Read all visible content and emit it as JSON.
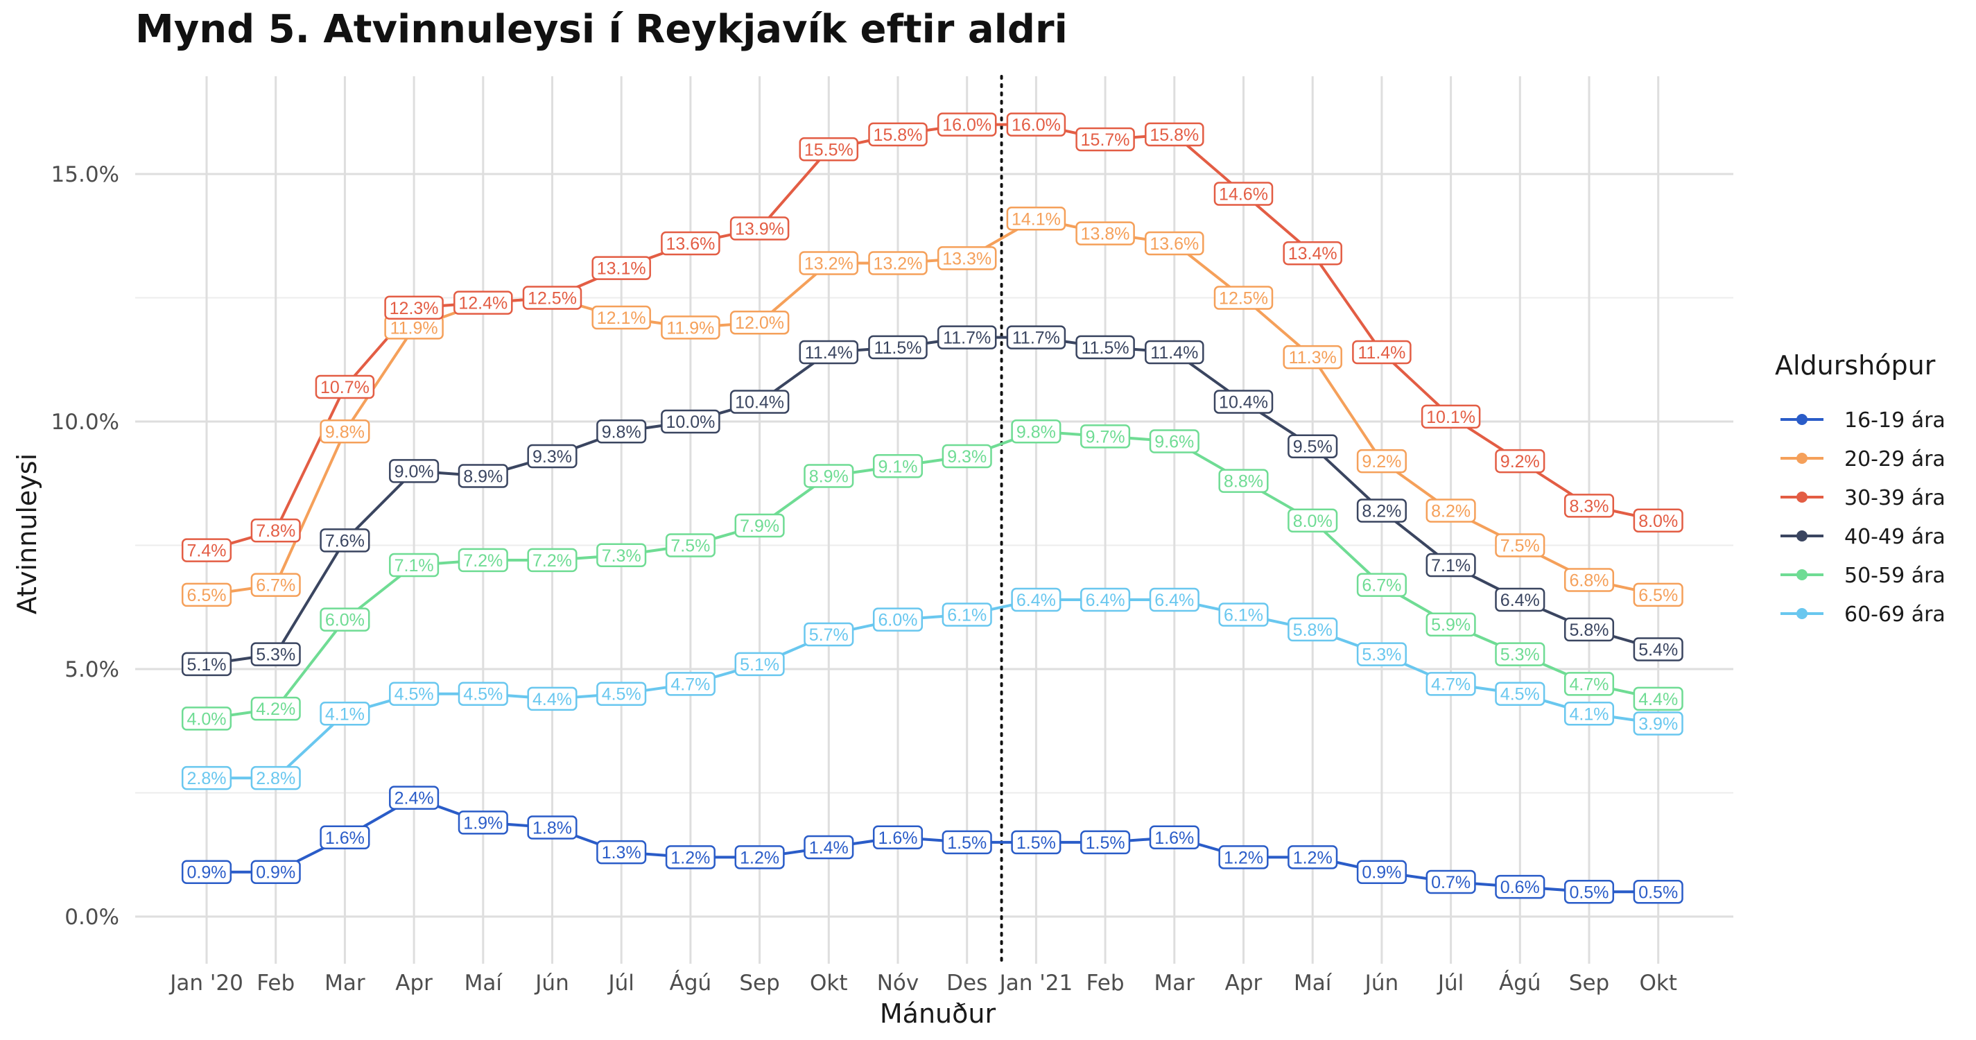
{
  "chart_data": {
    "type": "line",
    "title": "Mynd 5. Atvinnuleysi í Reykjavík eftir aldri",
    "xlabel": "Mánuður",
    "ylabel": "Atvinnuleysi",
    "categories": [
      "Jan '20",
      "Feb",
      "Mar",
      "Apr",
      "Maí",
      "Jún",
      "Júl",
      "Ágú",
      "Sep",
      "Okt",
      "Nóv",
      "Des",
      "Jan '21",
      "Feb",
      "Mar",
      "Apr",
      "Maí",
      "Jún",
      "Júl",
      "Ágú",
      "Sep",
      "Okt"
    ],
    "ylim": [
      -0.3,
      16.8
    ],
    "yticks": [
      0,
      5,
      10,
      15
    ],
    "ytick_labels": [
      "0.0%",
      "5.0%",
      "10.0%",
      "15.0%"
    ],
    "vline_between": [
      11,
      12
    ],
    "grid": true,
    "legend": {
      "title": "Aldurshópur",
      "position": "right"
    },
    "series": [
      {
        "name": "16-19 ára",
        "color": "#2a5cc8",
        "values": [
          0.9,
          0.9,
          1.6,
          2.4,
          1.9,
          1.8,
          1.3,
          1.2,
          1.2,
          1.4,
          1.6,
          1.5,
          1.5,
          1.5,
          1.6,
          1.2,
          1.2,
          0.9,
          0.7,
          0.6,
          0.5,
          0.5
        ],
        "labels": [
          "0.9%",
          "0.9%",
          "1.6%",
          "2.4%",
          "1.9%",
          "1.8%",
          "1.3%",
          "1.2%",
          "1.2%",
          "1.4%",
          "1.6%",
          "1.5%",
          "1.5%",
          "1.5%",
          "1.6%",
          "1.2%",
          "1.2%",
          "0.9%",
          "0.7%",
          "0.6%",
          "0.5%",
          "0.5%"
        ]
      },
      {
        "name": "20-29 ára",
        "color": "#f5a05a",
        "values": [
          6.5,
          6.7,
          9.8,
          11.9,
          12.4,
          12.5,
          12.1,
          11.9,
          12.0,
          13.2,
          13.2,
          13.3,
          14.1,
          13.8,
          13.6,
          12.5,
          11.3,
          9.2,
          8.2,
          7.5,
          6.8,
          6.5
        ],
        "labels": [
          "6.5%",
          "6.7%",
          "9.8%",
          "11.9%",
          "",
          "",
          "12.1%",
          "11.9%",
          "12.0%",
          "13.2%",
          "13.2%",
          "13.3%",
          "14.1%",
          "13.8%",
          "13.6%",
          "12.5%",
          "11.3%",
          "9.2%",
          "8.2%",
          "7.5%",
          "6.8%",
          "6.5%"
        ]
      },
      {
        "name": "30-39 ára",
        "color": "#e35d44",
        "values": [
          7.4,
          7.8,
          10.7,
          12.3,
          12.4,
          12.5,
          13.1,
          13.6,
          13.9,
          15.5,
          15.8,
          16.0,
          16.0,
          15.7,
          15.8,
          14.6,
          13.4,
          11.4,
          10.1,
          9.2,
          8.3,
          8.0
        ],
        "labels": [
          "7.4%",
          "7.8%",
          "10.7%",
          "12.3%",
          "12.4%",
          "12.5%",
          "13.1%",
          "13.6%",
          "13.9%",
          "15.5%",
          "15.8%",
          "16.0%",
          "16.0%",
          "15.7%",
          "15.8%",
          "14.6%",
          "13.4%",
          "11.4%",
          "10.1%",
          "9.2%",
          "8.3%",
          "8.0%"
        ]
      },
      {
        "name": "40-49 ára",
        "color": "#3a4560",
        "values": [
          5.1,
          5.3,
          7.6,
          9.0,
          8.9,
          9.3,
          9.8,
          10.0,
          10.4,
          11.4,
          11.5,
          11.7,
          11.7,
          11.5,
          11.4,
          10.4,
          9.5,
          8.2,
          7.1,
          6.4,
          5.8,
          5.4
        ],
        "labels": [
          "5.1%",
          "5.3%",
          "7.6%",
          "9.0%",
          "8.9%",
          "9.3%",
          "9.8%",
          "10.0%",
          "10.4%",
          "11.4%",
          "11.5%",
          "11.7%",
          "11.7%",
          "11.5%",
          "11.4%",
          "10.4%",
          "9.5%",
          "8.2%",
          "7.1%",
          "6.4%",
          "5.8%",
          "5.4%"
        ]
      },
      {
        "name": "50-59 ára",
        "color": "#6fdc94",
        "values": [
          4.0,
          4.2,
          6.0,
          7.1,
          7.2,
          7.2,
          7.3,
          7.5,
          7.9,
          8.9,
          9.1,
          9.3,
          9.8,
          9.7,
          9.6,
          8.8,
          8.0,
          6.7,
          5.9,
          5.3,
          4.7,
          4.4
        ],
        "labels": [
          "4.0%",
          "4.2%",
          "6.0%",
          "7.1%",
          "7.2%",
          "7.2%",
          "7.3%",
          "7.5%",
          "7.9%",
          "8.9%",
          "9.1%",
          "9.3%",
          "9.8%",
          "9.7%",
          "9.6%",
          "8.8%",
          "8.0%",
          "6.7%",
          "5.9%",
          "5.3%",
          "4.7%",
          "4.4%"
        ]
      },
      {
        "name": "60-69 ára",
        "color": "#69c7ef",
        "values": [
          2.8,
          2.8,
          4.1,
          4.5,
          4.5,
          4.4,
          4.5,
          4.7,
          5.1,
          5.7,
          6.0,
          6.1,
          6.4,
          6.4,
          6.4,
          6.1,
          5.8,
          5.3,
          4.7,
          4.5,
          4.1,
          3.9
        ],
        "labels": [
          "2.8%",
          "2.8%",
          "4.1%",
          "4.5%",
          "4.5%",
          "4.4%",
          "4.5%",
          "4.7%",
          "5.1%",
          "5.7%",
          "6.0%",
          "6.1%",
          "6.4%",
          "6.4%",
          "6.4%",
          "6.1%",
          "5.8%",
          "5.3%",
          "4.7%",
          "4.5%",
          "4.1%",
          "3.9%"
        ]
      }
    ]
  }
}
